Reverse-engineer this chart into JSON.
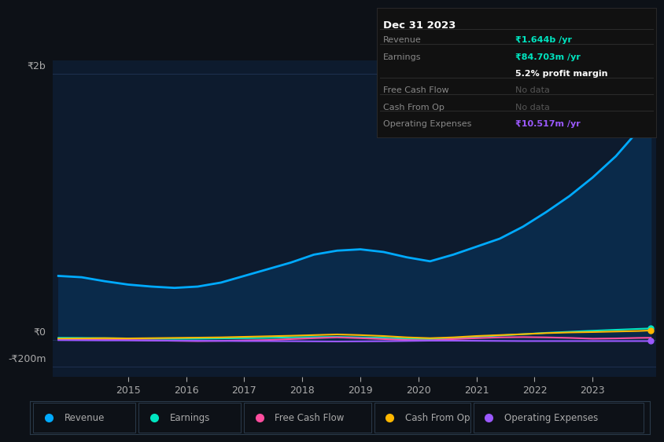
{
  "bg_color": "#0d1117",
  "plot_bg_color": "#0d1b2e",
  "grid_color": "#1e3050",
  "text_color": "#aaaaaa",
  "title_color": "#ffffff",
  "years": [
    2013.8,
    2014.2,
    2014.6,
    2015.0,
    2015.4,
    2015.8,
    2016.2,
    2016.6,
    2017.0,
    2017.4,
    2017.8,
    2018.2,
    2018.6,
    2019.0,
    2019.4,
    2019.8,
    2020.2,
    2020.6,
    2021.0,
    2021.4,
    2021.8,
    2022.2,
    2022.6,
    2023.0,
    2023.4,
    2023.8,
    2024.0
  ],
  "revenue": [
    480,
    470,
    440,
    415,
    400,
    390,
    400,
    430,
    480,
    530,
    580,
    640,
    670,
    680,
    660,
    620,
    590,
    640,
    700,
    760,
    850,
    960,
    1080,
    1220,
    1380,
    1580,
    1644
  ],
  "earnings": [
    15,
    14,
    12,
    10,
    8,
    7,
    8,
    10,
    12,
    14,
    18,
    20,
    22,
    18,
    15,
    8,
    5,
    12,
    22,
    32,
    42,
    52,
    60,
    68,
    75,
    82,
    85
  ],
  "free_cash_flow": [
    5,
    3,
    0,
    -2,
    -5,
    -8,
    -10,
    -8,
    -5,
    -2,
    5,
    12,
    18,
    12,
    5,
    -2,
    -5,
    5,
    12,
    18,
    20,
    18,
    14,
    8,
    10,
    14,
    15
  ],
  "cash_from_op": [
    8,
    10,
    12,
    10,
    12,
    14,
    16,
    18,
    22,
    26,
    30,
    35,
    40,
    35,
    28,
    18,
    12,
    18,
    28,
    35,
    42,
    50,
    55,
    58,
    62,
    66,
    70
  ],
  "operating_expenses": [
    -3,
    -4,
    -5,
    -5,
    -6,
    -7,
    -8,
    -9,
    -10,
    -10,
    -11,
    -12,
    -13,
    -12,
    -11,
    -9,
    -7,
    -7,
    -8,
    -9,
    -10,
    -10,
    -10,
    -10,
    -10,
    -10,
    -10
  ],
  "revenue_color": "#00aaff",
  "earnings_color": "#00e5c0",
  "free_cash_flow_color": "#ff4d9e",
  "cash_from_op_color": "#ffb700",
  "operating_expenses_color": "#9b59ff",
  "fill_color": "#0a2a4a",
  "ylim_min": -280,
  "ylim_max": 2100,
  "ytick_vals": [
    -200,
    0,
    2000
  ],
  "ytick_labels": [
    "-₹200m",
    "₹0",
    "₹2b"
  ],
  "xlabel_years": [
    2015,
    2016,
    2017,
    2018,
    2019,
    2020,
    2021,
    2022,
    2023
  ],
  "legend_items": [
    [
      "Revenue",
      "#00aaff"
    ],
    [
      "Earnings",
      "#00e5c0"
    ],
    [
      "Free Cash Flow",
      "#ff4d9e"
    ],
    [
      "Cash From Op",
      "#ffb700"
    ],
    [
      "Operating Expenses",
      "#9b59ff"
    ]
  ],
  "figsize": [
    8.21,
    5.6
  ],
  "dpi": 100
}
